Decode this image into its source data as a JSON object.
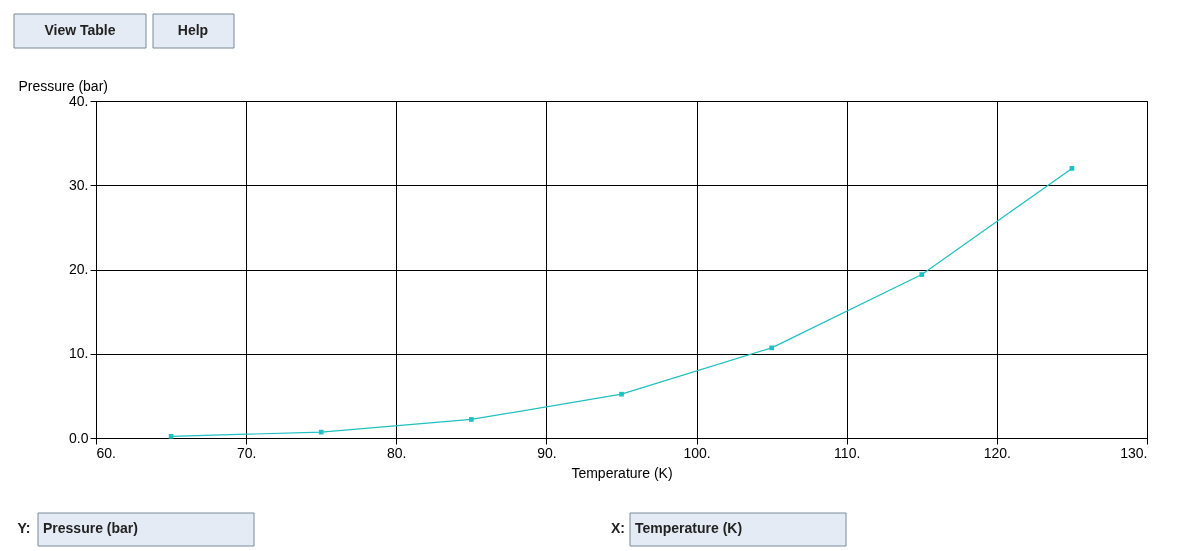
{
  "chart_data": {
    "type": "line",
    "xlabel": "Temperature (K)",
    "ylabel": "Pressure (bar)",
    "x": [
      65,
      75,
      85,
      95,
      105,
      115,
      125
    ],
    "series": [
      {
        "color": "#20c0c0",
        "values": [
          0.2,
          0.7,
          2.2,
          5.2,
          10.7,
          19.4,
          32.0
        ]
      }
    ],
    "xlim": [
      60,
      130
    ],
    "ylim": [
      0,
      40
    ],
    "xticks": [
      {
        "value": 60,
        "label": "60."
      },
      {
        "value": 70,
        "label": "70."
      },
      {
        "value": 80,
        "label": "80."
      },
      {
        "value": 90,
        "label": "90."
      },
      {
        "value": 100,
        "label": "100."
      },
      {
        "value": 110,
        "label": "110."
      },
      {
        "value": 120,
        "label": "120."
      },
      {
        "value": 130,
        "label": "130."
      }
    ],
    "yticks": [
      {
        "value": 0,
        "label": "0.0"
      },
      {
        "value": 10,
        "label": "10."
      },
      {
        "value": 20,
        "label": "20."
      },
      {
        "value": 30,
        "label": "30."
      },
      {
        "value": 40,
        "label": "40."
      }
    ],
    "grid": true,
    "marker": "square",
    "line_style": "solid",
    "annotations": [
      "View Table",
      "Help",
      "Y:",
      "Pressure (bar)",
      "X:",
      "Temperature (K)"
    ]
  }
}
